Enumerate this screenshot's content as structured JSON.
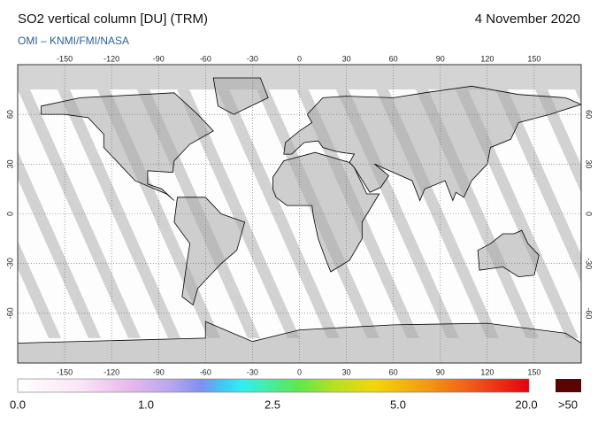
{
  "header": {
    "title": "SO2 vertical column [DU] (TRM)",
    "date": "4 November 2020",
    "source": "OMI  –  KNMI/FMI/NASA"
  },
  "map": {
    "longitude_ticks": [
      "-150",
      "-120",
      "-90",
      "-60",
      "-30",
      "0",
      "30",
      "60",
      "90",
      "120",
      "150"
    ],
    "latitude_ticks": [
      "60",
      "30",
      "0",
      "-30",
      "-60"
    ]
  },
  "colorbar": {
    "labels": [
      "0.0",
      "1.0",
      "2.5",
      "5.0",
      "20.0"
    ],
    "overflow_label": ">50"
  }
}
